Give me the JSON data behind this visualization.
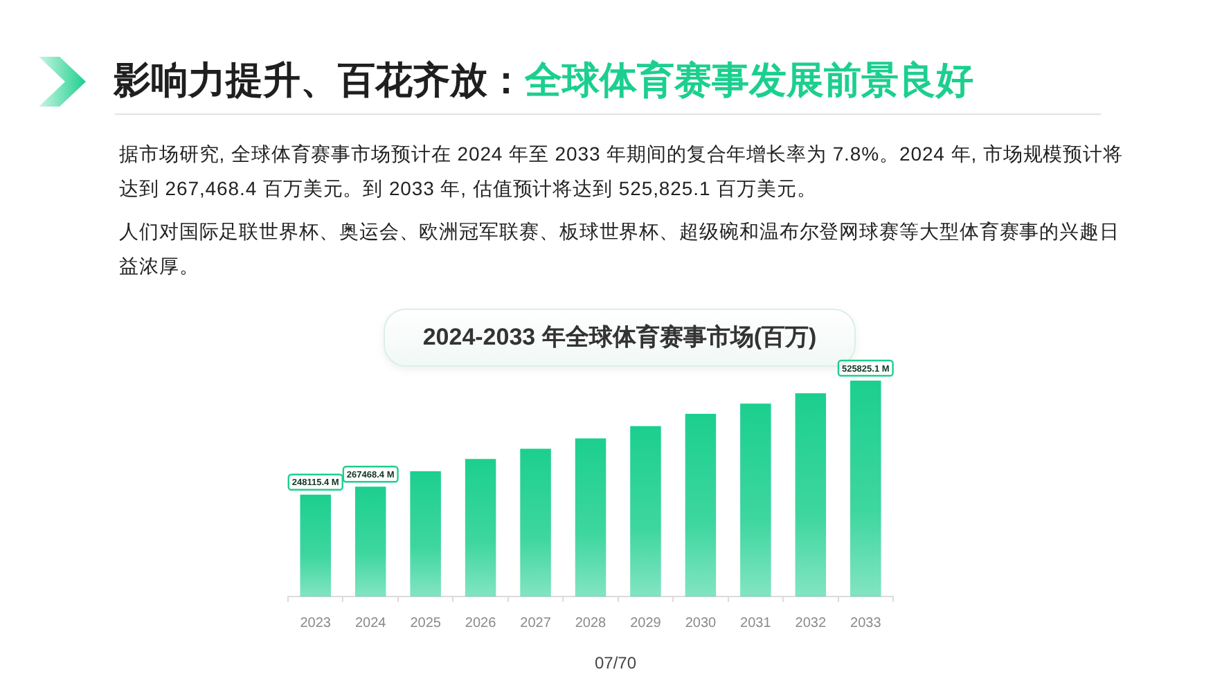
{
  "chart_data": {
    "type": "bar",
    "title": "2024-2033 年全球体育赛事市场(百万)",
    "categories": [
      "2023",
      "2024",
      "2025",
      "2026",
      "2027",
      "2028",
      "2029",
      "2030",
      "2031",
      "2032",
      "2033"
    ],
    "values": [
      248115.4,
      267468.4,
      305000,
      335000,
      360000,
      385000,
      415000,
      445000,
      470000,
      495000,
      525825.1
    ],
    "value_labels": [
      "248115.4 M",
      "267468.4 M",
      null,
      null,
      null,
      null,
      null,
      null,
      null,
      null,
      "525825.1 M"
    ],
    "color": "#1ccf8f",
    "tick_labels": "x",
    "annotations": [
      "影响力提升、百花齐放：",
      "全球体育赛事发展前景良好",
      "据市场研究, 全球体育赛事市场预计在 2024 年至 2033 年期间的复合年增长率为 7.8%。2024 年, 市场规模预计将达到 267,468.4 百万美元。到 2033 年, 估值预计将达到 525,825.1 百万美元。",
      "人们对国际足联世界杯、奥运会、欧洲冠军联赛、板球世界杯、超级碗和温布尔登网球赛等大型体育赛事的兴趣日益浓厚。",
      "07/70"
    ]
  }
}
